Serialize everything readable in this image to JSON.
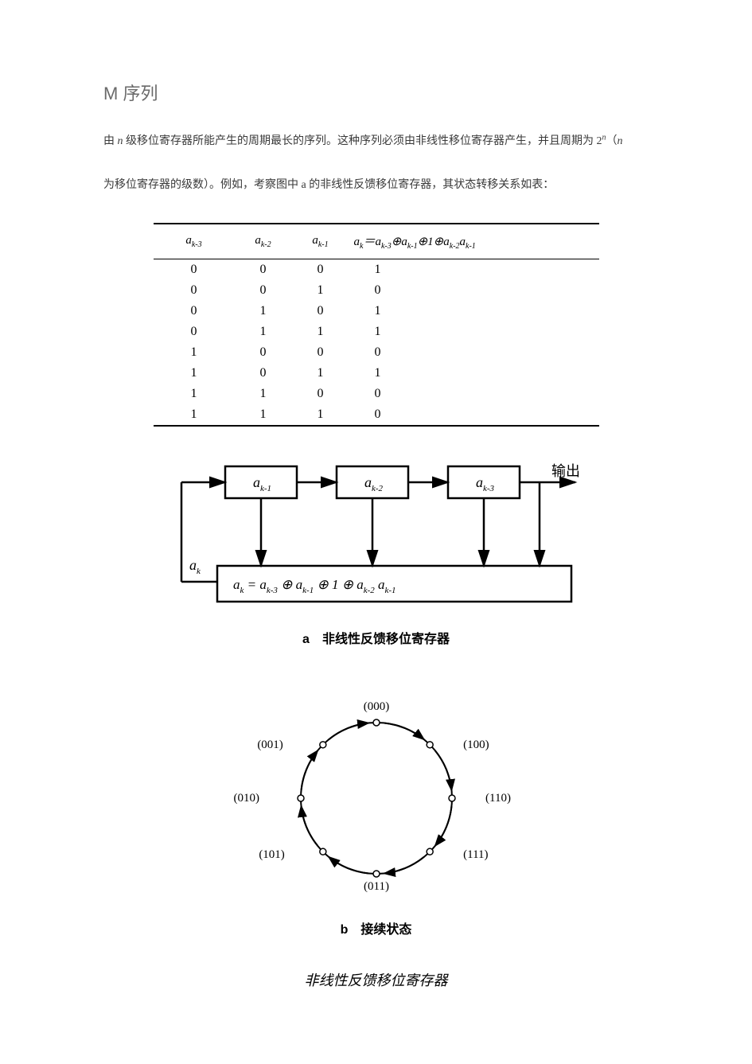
{
  "title": "M 序列",
  "paragraph": {
    "p1a": "由 ",
    "p1n": "n",
    "p1b": " 级移位寄存器所能产生的周期最长的序列。这种序列必须由非线性移位寄存器产生，并且周期为 2",
    "p1exp": "n",
    "p1c": "（",
    "p1n2": "n",
    "p2a": "为移位寄存器的级数）。例如，考察图中 a 的非线性反馈移位寄存器，其状态转移关系如表："
  },
  "table": {
    "headers": {
      "h1": "a",
      "h1sub": "k-3",
      "h2": "a",
      "h2sub": "k-2",
      "h3": "a",
      "h3sub": "k-1",
      "h4": "a",
      "h4sub": "k",
      "h4eq": "＝a",
      "h4s1": "k-3",
      "h4op1": "⊕a",
      "h4s2": "k-1",
      "h4op2": "⊕1⊕a",
      "h4s3": "k-2",
      "h4op3": "a",
      "h4s4": "k-1"
    },
    "rows": [
      [
        "0",
        "0",
        "0",
        "1"
      ],
      [
        "0",
        "0",
        "1",
        "0"
      ],
      [
        "0",
        "1",
        "0",
        "1"
      ],
      [
        "0",
        "1",
        "1",
        "1"
      ],
      [
        "1",
        "0",
        "0",
        "0"
      ],
      [
        "1",
        "0",
        "1",
        "1"
      ],
      [
        "1",
        "1",
        "0",
        "0"
      ],
      [
        "1",
        "1",
        "1",
        "0"
      ]
    ]
  },
  "diagA": {
    "box1": "a",
    "box1sub": "k-1",
    "box2": "a",
    "box2sub": "k-2",
    "box3": "a",
    "box3sub": "k-3",
    "out": "输出",
    "aklabel": "a",
    "aksub": "k",
    "formula_a": "a",
    "formula_ksub": "k",
    "formula_eq": " = a",
    "formula_s1": "k-3",
    "formula_op1": "  ⊕  a",
    "formula_s2": "k-1",
    "formula_op2": "  ⊕  1  ⊕  a",
    "formula_s3": "k-2",
    "formula_sp": "  a",
    "formula_s4": "k-1",
    "caption": "a　非线性反馈移位寄存器"
  },
  "diagB": {
    "states": [
      "(000)",
      "(100)",
      "(110)",
      "(111)",
      "(011)",
      "(101)",
      "(010)",
      "(001)"
    ],
    "caption": "b　接续状态"
  },
  "bigcaption": "非线性反馈移位寄存器"
}
